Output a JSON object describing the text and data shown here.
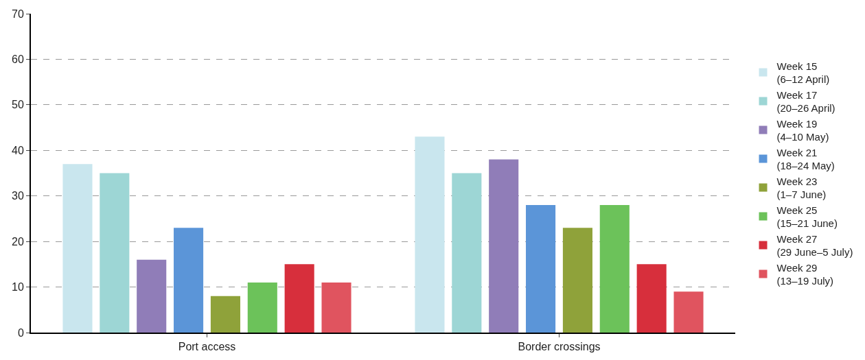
{
  "chart_data": {
    "type": "bar",
    "categories": [
      "Port access",
      "Border crossings"
    ],
    "series": [
      {
        "name": "Week 15\n(6–12 April)",
        "color": "#c9e6ee",
        "values": [
          37,
          43
        ]
      },
      {
        "name": "Week 17\n(20–26 April)",
        "color": "#9dd6d5",
        "values": [
          35,
          35
        ]
      },
      {
        "name": "Week 19\n(4–10 May)",
        "color": "#907db8",
        "values": [
          16,
          38
        ]
      },
      {
        "name": "Week 21\n(18–24 May)",
        "color": "#5b95d8",
        "values": [
          23,
          28
        ]
      },
      {
        "name": "Week 23\n(1–7 June)",
        "color": "#8fa23a",
        "values": [
          8,
          23
        ]
      },
      {
        "name": "Week 25\n(15–21 June)",
        "color": "#6cc25a",
        "values": [
          11,
          28
        ]
      },
      {
        "name": "Week 27\n(29 June–5 July)",
        "color": "#d72f3c",
        "values": [
          15,
          15
        ]
      },
      {
        "name": "Week 29\n(13–19 July)",
        "color": "#e0545f",
        "values": [
          11,
          9
        ]
      }
    ],
    "ylim": [
      0,
      70
    ],
    "yticks": [
      0,
      10,
      20,
      30,
      40,
      50,
      60,
      70
    ],
    "grid": "y",
    "legend": "right"
  }
}
